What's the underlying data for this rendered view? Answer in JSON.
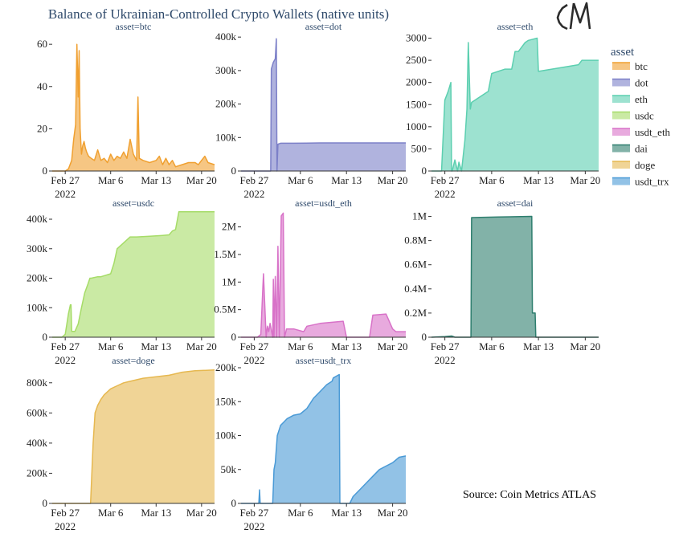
{
  "title": "Balance of Ukrainian-Controlled Crypto Wallets (native units)",
  "logo_text": "CM",
  "source": "Source: Coin Metrics ATLAS",
  "legend": {
    "title": "asset",
    "items": [
      {
        "name": "btc",
        "color": "#F0A030"
      },
      {
        "name": "dot",
        "color": "#7C80C8"
      },
      {
        "name": "eth",
        "color": "#5CCFB0"
      },
      {
        "name": "usdc",
        "color": "#A6DC68"
      },
      {
        "name": "usdt_eth",
        "color": "#D872C8"
      },
      {
        "name": "dai",
        "color": "#2E7E6E"
      },
      {
        "name": "doge",
        "color": "#E6B850"
      },
      {
        "name": "usdt_trx",
        "color": "#4A9AD6"
      }
    ]
  },
  "chart_data": [
    {
      "type": "area",
      "title": "asset=btc",
      "color": "#F0A030",
      "x_ticks": [
        "Feb 27\n2022",
        "Mar 6",
        "Mar 13",
        "Mar 20"
      ],
      "x_tick_days": [
        0,
        7,
        14,
        21
      ],
      "xlim": [
        -2,
        23
      ],
      "ylim": [
        0,
        65
      ],
      "y_ticks": [
        0,
        20,
        40,
        60
      ],
      "y_tick_labels": [
        "0",
        "20",
        "40",
        "60"
      ],
      "x": [
        -2,
        0.0,
        0.5,
        1.0,
        1.3,
        1.6,
        1.8,
        2.0,
        2.15,
        2.3,
        2.5,
        2.7,
        2.9,
        3.1,
        3.3,
        3.6,
        4,
        4.5,
        5,
        5.5,
        6,
        6.5,
        7,
        7.5,
        8,
        8.5,
        9,
        9.5,
        10,
        10.5,
        11,
        11.2,
        11.4,
        12,
        13,
        14,
        14.5,
        15,
        15.5,
        16,
        16.5,
        17,
        18,
        19,
        20,
        20.5,
        21,
        21.5,
        22,
        23
      ],
      "y": [
        0,
        0,
        1,
        5,
        15,
        22,
        60,
        35,
        57,
        20,
        8,
        12,
        14,
        11,
        9,
        7,
        6,
        5,
        10,
        5,
        6,
        4,
        8,
        5,
        7,
        6,
        9,
        6,
        15,
        8,
        5,
        35,
        6,
        5,
        4,
        5,
        7,
        3,
        6,
        3,
        5,
        2,
        3,
        4,
        4,
        3,
        5,
        7,
        4,
        3
      ]
    },
    {
      "type": "area",
      "title": "asset=dot",
      "color": "#7C80C8",
      "x_ticks": [
        "Feb 27\n2022",
        "Mar 6",
        "Mar 13",
        "Mar 20"
      ],
      "x_tick_days": [
        0,
        7,
        14,
        21
      ],
      "xlim": [
        -2,
        23
      ],
      "ylim": [
        0,
        410000
      ],
      "y_ticks": [
        0,
        100000,
        200000,
        300000,
        400000
      ],
      "y_tick_labels": [
        "0",
        "100k",
        "200k",
        "300k",
        "400k"
      ],
      "x": [
        -2,
        1.0,
        2.5,
        2.6,
        2.9,
        3.2,
        3.35,
        3.45,
        3.6,
        4.0,
        6,
        10,
        14,
        18,
        23
      ],
      "y": [
        0,
        0,
        0,
        305000,
        325000,
        335000,
        395000,
        0,
        80000,
        83000,
        83000,
        84000,
        84000,
        84000,
        84000
      ]
    },
    {
      "type": "area",
      "title": "asset=eth",
      "color": "#5CCFB0",
      "x_ticks": [
        "Feb 27\n2022",
        "Mar 6",
        "Mar 13",
        "Mar 20"
      ],
      "x_tick_days": [
        0,
        7,
        14,
        21
      ],
      "xlim": [
        -2,
        23
      ],
      "ylim": [
        0,
        3100
      ],
      "y_ticks": [
        0,
        500,
        1000,
        1500,
        2000,
        2500,
        3000
      ],
      "y_tick_labels": [
        "0",
        "500",
        "1000",
        "1500",
        "2000",
        "2500",
        "3000"
      ],
      "x": [
        -2,
        -0.5,
        0.0,
        0.5,
        0.9,
        1.0,
        1.1,
        1.5,
        1.9,
        2.1,
        2.5,
        3.0,
        3.3,
        3.5,
        3.8,
        4.0,
        4.5,
        5.5,
        6.5,
        7.0,
        9.0,
        10.0,
        10.5,
        11,
        12,
        12.5,
        13.8,
        14.0,
        16,
        18,
        20,
        20.5,
        22,
        23
      ],
      "y": [
        0,
        0,
        1600,
        1800,
        2000,
        0,
        0,
        250,
        0,
        200,
        0,
        700,
        1400,
        2900,
        1400,
        1550,
        1600,
        1700,
        1800,
        2200,
        2300,
        2300,
        2700,
        2700,
        2900,
        2950,
        3000,
        2250,
        2300,
        2350,
        2400,
        2500,
        2500,
        2500
      ]
    },
    {
      "type": "area",
      "title": "asset=usdc",
      "color": "#A6DC68",
      "x_ticks": [
        "Feb 27\n2022",
        "Mar 6",
        "Mar 13",
        "Mar 20"
      ],
      "x_tick_days": [
        0,
        7,
        14,
        21
      ],
      "xlim": [
        -2,
        23
      ],
      "ylim": [
        0,
        430000
      ],
      "y_ticks": [
        0,
        100000,
        200000,
        300000,
        400000
      ],
      "y_tick_labels": [
        "0",
        "100k",
        "200k",
        "300k",
        "400k"
      ],
      "x": [
        -2,
        -0.5,
        0.0,
        0.5,
        0.8,
        0.9,
        1.0,
        1.5,
        2.0,
        2.5,
        3.0,
        3.5,
        3.8,
        4.0,
        5.0,
        5.5,
        7.0,
        7.5,
        8.0,
        9.0,
        10,
        11.0,
        13,
        15.0,
        16.0,
        16.5,
        17,
        17.5,
        19,
        21,
        22,
        23
      ],
      "y": [
        0,
        0,
        10000,
        80000,
        110000,
        110000,
        20000,
        20000,
        45000,
        100000,
        150000,
        180000,
        200000,
        200000,
        205000,
        205000,
        215000,
        250000,
        300000,
        320000,
        340000,
        340000,
        342000,
        345000,
        347000,
        360000,
        365000,
        425000,
        425000,
        425000,
        425000,
        425000
      ]
    },
    {
      "type": "area",
      "title": "asset=usdt_eth",
      "color": "#D872C8",
      "x_ticks": [
        "Feb 27\n2022",
        "Mar 6",
        "Mar 13",
        "Mar 20"
      ],
      "x_tick_days": [
        0,
        7,
        14,
        21
      ],
      "xlim": [
        -2,
        23
      ],
      "ylim": [
        0,
        2300000
      ],
      "y_ticks": [
        0,
        500000,
        1000000,
        1500000,
        2000000
      ],
      "y_tick_labels": [
        "0",
        "0.5M",
        "1M",
        "1.5M",
        "2M"
      ],
      "x": [
        -2,
        0.0,
        0.5,
        1.0,
        1.3,
        1.4,
        1.8,
        2.0,
        2.2,
        2.4,
        2.8,
        2.9,
        3.0,
        3.2,
        3.4,
        3.6,
        3.8,
        4.1,
        4.4,
        4.6,
        4.9,
        6.0,
        7.5,
        8.0,
        10,
        13.5,
        14,
        16,
        17.5,
        18,
        20,
        21,
        21.5,
        23
      ],
      "y": [
        0,
        0,
        0,
        50000,
        900000,
        1150000,
        0,
        200000,
        100000,
        250000,
        0,
        1050000,
        0,
        1100000,
        0,
        1650000,
        0,
        2200000,
        2250000,
        0,
        150000,
        150000,
        100000,
        200000,
        250000,
        290000,
        0,
        0,
        0,
        400000,
        420000,
        150000,
        100000,
        100000
      ]
    },
    {
      "type": "area",
      "title": "asset=dai",
      "color": "#2E7E6E",
      "x_ticks": [
        "Feb 27\n2022",
        "Mar 6",
        "Mar 13",
        "Mar 20"
      ],
      "x_tick_days": [
        0,
        7,
        14,
        21
      ],
      "xlim": [
        -2,
        23
      ],
      "ylim": [
        0,
        1050000
      ],
      "y_ticks": [
        0,
        200000,
        400000,
        600000,
        800000,
        1000000
      ],
      "y_tick_labels": [
        "0",
        "0.2M",
        "0.4M",
        "0.6M",
        "0.8M",
        "1M"
      ],
      "x": [
        -2,
        0.0,
        1.0,
        1.5,
        3.9,
        4.0,
        8,
        13.0,
        13.1,
        13.5,
        13.6,
        23
      ],
      "y": [
        0,
        5000,
        10000,
        0,
        0,
        990000,
        995000,
        1000000,
        200000,
        200000,
        0,
        0
      ]
    },
    {
      "type": "area",
      "title": "asset=doge",
      "color": "#E6B850",
      "x_ticks": [
        "Feb 27\n2022",
        "Mar 6",
        "Mar 13",
        "Mar 20"
      ],
      "x_tick_days": [
        0,
        7,
        14,
        21
      ],
      "xlim": [
        -2,
        23
      ],
      "ylim": [
        0,
        900000
      ],
      "y_ticks": [
        0,
        200000,
        400000,
        600000,
        800000
      ],
      "y_tick_labels": [
        "0",
        "200k",
        "400k",
        "600k",
        "800k"
      ],
      "x": [
        -2,
        3.9,
        4.0,
        4.3,
        4.6,
        5.0,
        5.5,
        6,
        7,
        8,
        9,
        10,
        11,
        12,
        14,
        16,
        18,
        20,
        23
      ],
      "y": [
        0,
        0,
        100000,
        400000,
        600000,
        650000,
        690000,
        720000,
        760000,
        780000,
        800000,
        810000,
        820000,
        830000,
        840000,
        850000,
        870000,
        880000,
        885000
      ]
    },
    {
      "type": "area",
      "title": "asset=usdt_trx",
      "color": "#4A9AD6",
      "x_ticks": [
        "Feb 27\n2022",
        "Mar 6",
        "Mar 13",
        "Mar 20"
      ],
      "x_tick_days": [
        0,
        7,
        14,
        21
      ],
      "xlim": [
        -2,
        23
      ],
      "ylim": [
        0,
        200000
      ],
      "y_ticks": [
        0,
        50000,
        100000,
        150000,
        200000
      ],
      "y_tick_labels": [
        "0",
        "50k",
        "100k",
        "150k",
        "200k"
      ],
      "x": [
        -2,
        0.7,
        0.8,
        0.9,
        2.8,
        3.0,
        3.2,
        3.5,
        4.0,
        4.5,
        5.0,
        6.0,
        7.0,
        8.0,
        9.0,
        10.0,
        11.0,
        11.8,
        12.0,
        12.9,
        13.0,
        14.5,
        15.0,
        16.0,
        17.0,
        18.0,
        19.0,
        20.0,
        21.0,
        22.0,
        23
      ],
      "y": [
        0,
        0,
        20000,
        0,
        0,
        50000,
        60000,
        100000,
        115000,
        120000,
        125000,
        130000,
        132000,
        140000,
        155000,
        165000,
        175000,
        180000,
        185000,
        190000,
        0,
        0,
        10000,
        20000,
        30000,
        40000,
        50000,
        55000,
        60000,
        68000,
        70000
      ]
    }
  ]
}
